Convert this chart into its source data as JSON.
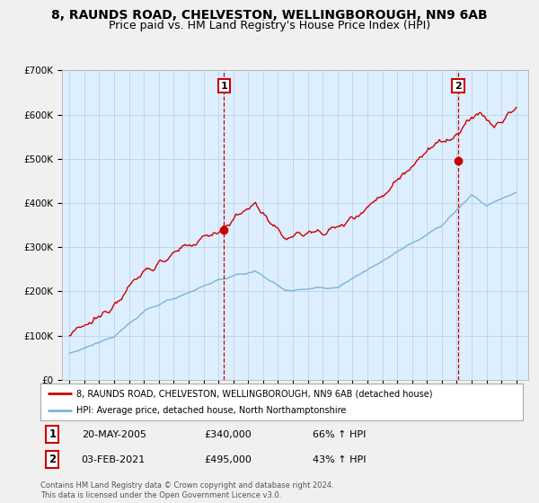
{
  "title_line1": "8, RAUNDS ROAD, CHELVESTON, WELLINGBOROUGH, NN9 6AB",
  "title_line2": "Price paid vs. HM Land Registry's House Price Index (HPI)",
  "ylim": [
    0,
    700000
  ],
  "yticks": [
    0,
    100000,
    200000,
    300000,
    400000,
    500000,
    600000,
    700000
  ],
  "ytick_labels": [
    "£0",
    "£100K",
    "£200K",
    "£300K",
    "£400K",
    "£500K",
    "£600K",
    "£700K"
  ],
  "sale1_date_num": 2005.38,
  "sale1_price": 340000,
  "sale2_date_num": 2021.09,
  "sale2_price": 495000,
  "hpi_color": "#7ab4d8",
  "price_color": "#cc0000",
  "vline_color": "#cc0000",
  "background_color": "#f0f0f0",
  "plot_bg_color": "#ddeeff",
  "grid_color": "#bbccdd",
  "legend_label1": "8, RAUNDS ROAD, CHELVESTON, WELLINGBOROUGH, NN9 6AB (detached house)",
  "legend_label2": "HPI: Average price, detached house, North Northamptonshire",
  "table_row1": [
    "1",
    "20-MAY-2005",
    "£340,000",
    "66% ↑ HPI"
  ],
  "table_row2": [
    "2",
    "03-FEB-2021",
    "£495,000",
    "43% ↑ HPI"
  ],
  "footnote": "Contains HM Land Registry data © Crown copyright and database right 2024.\nThis data is licensed under the Open Government Licence v3.0.",
  "title_fontsize": 10,
  "subtitle_fontsize": 9,
  "seed": 12345
}
